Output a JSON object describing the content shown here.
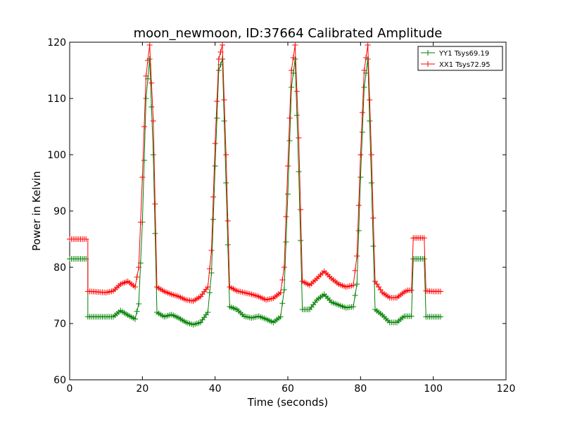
{
  "chart_data": {
    "type": "line",
    "title": "moon_newmoon, ID:37664 Calibrated Amplitude",
    "xlabel": "Time (seconds)",
    "ylabel": "Power in Kelvin",
    "xlim": [
      0,
      120
    ],
    "ylim": [
      60,
      120
    ],
    "xticks": [
      0,
      20,
      40,
      60,
      80,
      100,
      120
    ],
    "yticks": [
      60,
      70,
      80,
      90,
      100,
      110,
      120
    ],
    "grid": false,
    "legend": "top-right",
    "marker": "+",
    "series": [
      {
        "name": "YY1 Tsys69.19",
        "color": "#008000",
        "x": [
          0,
          2,
          4,
          5,
          5,
          6,
          8,
          10,
          12,
          14,
          16,
          18,
          19,
          20,
          21,
          22,
          23,
          24,
          26,
          28,
          30,
          32,
          34,
          36,
          38,
          39,
          40,
          41,
          42,
          43,
          44,
          46,
          48,
          50,
          52,
          54,
          56,
          58,
          59,
          60,
          61,
          62,
          63,
          64,
          66,
          68,
          70,
          72,
          74,
          76,
          78,
          79,
          80,
          81,
          82,
          83,
          84,
          86,
          88,
          90,
          92,
          93,
          93.5,
          94,
          94.5,
          95,
          96,
          97,
          97.5,
          98,
          100,
          102
        ],
        "values": [
          81.5,
          81.5,
          81.5,
          81.5,
          71.2,
          71.2,
          71.2,
          71.2,
          71.2,
          72.3,
          71.5,
          70.8,
          73.5,
          88,
          110,
          117,
          100,
          72,
          71.2,
          71.6,
          71,
          70.2,
          69.8,
          70.2,
          72,
          79,
          98,
          115,
          117,
          95,
          73,
          72.5,
          71.3,
          71,
          71.3,
          70.8,
          70.2,
          71.2,
          76,
          93,
          112,
          117,
          97,
          72.5,
          72.5,
          74.2,
          75.2,
          73.8,
          73.3,
          72.8,
          73,
          77,
          96,
          112,
          117,
          95,
          72.5,
          71.5,
          70.2,
          70.2,
          71.3,
          71.3,
          71.3,
          71.3,
          81.5,
          81.5,
          81.5,
          81.5,
          81.5,
          71.2,
          71.2,
          71.2
        ]
      },
      {
        "name": "XX1 Tsys72.95",
        "color": "#ff0000",
        "x": [
          0,
          2,
          4,
          5,
          5,
          6,
          8,
          10,
          12,
          14,
          16,
          18,
          19,
          20,
          21,
          22,
          23,
          24,
          26,
          28,
          30,
          32,
          34,
          36,
          38,
          39,
          40,
          41,
          42,
          43,
          44,
          46,
          48,
          50,
          52,
          54,
          56,
          58,
          59,
          60,
          61,
          62,
          63,
          64,
          66,
          68,
          70,
          72,
          74,
          76,
          78,
          79,
          80,
          81,
          82,
          83,
          84,
          86,
          88,
          90,
          92,
          93,
          93.5,
          94,
          94.5,
          95,
          96,
          97,
          97.5,
          98,
          100,
          102
        ],
        "values": [
          85,
          85,
          85,
          85,
          75.7,
          75.7,
          75.6,
          75.5,
          75.8,
          77,
          77.5,
          76.5,
          80,
          96,
          114,
          119.5,
          106,
          76.5,
          75.7,
          75.2,
          74.8,
          74.2,
          74,
          74.8,
          76.5,
          83,
          102,
          117,
          119.5,
          100,
          76.5,
          75.8,
          75.5,
          75.2,
          74.8,
          74.2,
          74.5,
          75.5,
          80,
          98,
          115,
          119.5,
          103,
          77.5,
          76.8,
          78,
          79.3,
          78,
          77,
          76.5,
          76.8,
          82,
          100,
          115,
          119.5,
          100,
          77.5,
          75.5,
          74.6,
          74.6,
          75.6,
          75.9,
          75.9,
          75.9,
          85.2,
          85.2,
          85.2,
          85.2,
          85.2,
          75.8,
          75.7,
          75.7
        ]
      }
    ]
  }
}
